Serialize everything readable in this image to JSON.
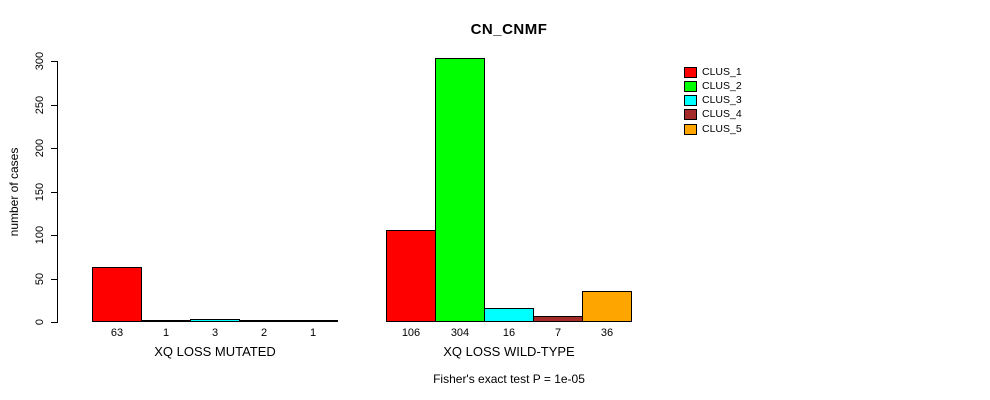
{
  "chart_data": {
    "type": "bar",
    "title": "CN_CNMF",
    "ylabel": "number of cases",
    "xlabel": "",
    "ylim": [
      0,
      300
    ],
    "yticks": [
      0,
      50,
      100,
      150,
      200,
      250,
      300
    ],
    "grid": false,
    "legend_position": "right",
    "categories": [
      "XQ LOSS MUTATED",
      "XQ LOSS WILD-TYPE"
    ],
    "series": [
      {
        "name": "CLUS_1",
        "color": "#FF0000",
        "values": [
          63,
          106
        ]
      },
      {
        "name": "CLUS_2",
        "color": "#00FF00",
        "values": [
          1,
          304
        ]
      },
      {
        "name": "CLUS_3",
        "color": "#00FFFF",
        "values": [
          3,
          16
        ]
      },
      {
        "name": "CLUS_4",
        "color": "#A52A2A",
        "values": [
          2,
          7
        ]
      },
      {
        "name": "CLUS_5",
        "color": "#FFA500",
        "values": [
          1,
          36
        ]
      }
    ],
    "bar_value_labels": [
      [
        63,
        1,
        3,
        2,
        1
      ],
      [
        106,
        304,
        16,
        7,
        36
      ]
    ],
    "annotation": "Fisher's exact test P = 1e-05"
  },
  "colors": {
    "background": "#FFFFFF",
    "axis": "#000000",
    "bar_border": "#000000"
  }
}
